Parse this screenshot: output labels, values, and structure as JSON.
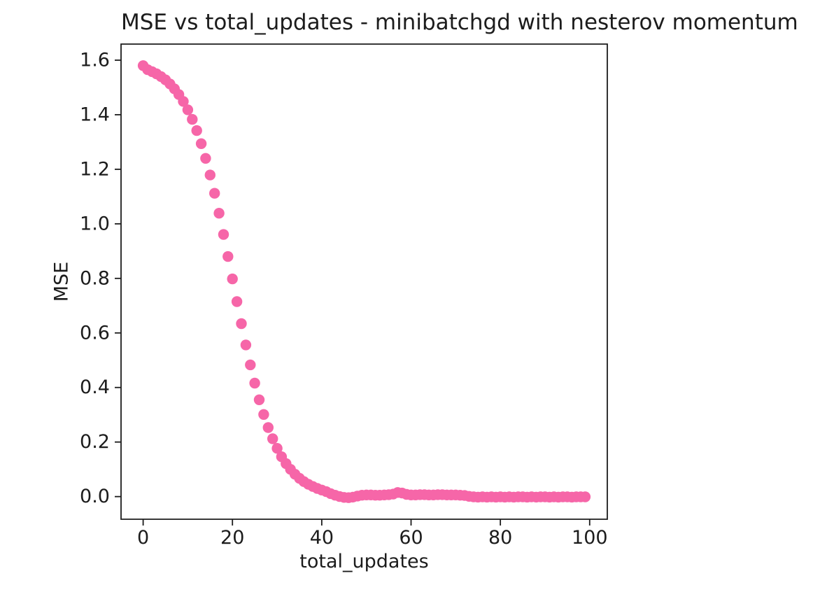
{
  "chart_data": {
    "type": "scatter",
    "title": "MSE vs total_updates - minibatchgd with nesterov momentum",
    "xlabel": "total_updates",
    "ylabel": "MSE",
    "marker_color": "#f666a8",
    "axis_color": "#1c1c1c",
    "background_color": "#ffffff",
    "grid": false,
    "legend": null,
    "xlim": [
      -4.95,
      103.95
    ],
    "ylim": [
      -0.083,
      1.659
    ],
    "x_ticks": [
      0,
      20,
      40,
      60,
      80,
      100
    ],
    "x_tick_labels": [
      "0",
      "20",
      "40",
      "60",
      "80",
      "100"
    ],
    "y_ticks": [
      0.0,
      0.2,
      0.4,
      0.6,
      0.8,
      1.0,
      1.2,
      1.4,
      1.6
    ],
    "y_tick_labels": [
      "0.0",
      "0.2",
      "0.4",
      "0.6",
      "0.8",
      "1.0",
      "1.2",
      "1.4",
      "1.6"
    ],
    "x": [
      0,
      1,
      2,
      3,
      4,
      5,
      6,
      7,
      8,
      9,
      10,
      11,
      12,
      13,
      14,
      15,
      16,
      17,
      18,
      19,
      20,
      21,
      22,
      23,
      24,
      25,
      26,
      27,
      28,
      29,
      30,
      31,
      32,
      33,
      34,
      35,
      36,
      37,
      38,
      39,
      40,
      41,
      42,
      43,
      44,
      45,
      46,
      47,
      48,
      49,
      50,
      51,
      52,
      53,
      54,
      55,
      56,
      57,
      58,
      59,
      60,
      61,
      62,
      63,
      64,
      65,
      66,
      67,
      68,
      69,
      70,
      71,
      72,
      73,
      74,
      75,
      76,
      77,
      78,
      79,
      80,
      81,
      82,
      83,
      84,
      85,
      86,
      87,
      88,
      89,
      90,
      91,
      92,
      93,
      94,
      95,
      96,
      97,
      98,
      99
    ],
    "y": [
      1.58,
      1.565,
      1.558,
      1.55,
      1.54,
      1.528,
      1.513,
      1.495,
      1.474,
      1.449,
      1.418,
      1.383,
      1.342,
      1.294,
      1.24,
      1.179,
      1.112,
      1.039,
      0.961,
      0.88,
      0.798,
      0.715,
      0.634,
      0.556,
      0.483,
      0.416,
      0.355,
      0.301,
      0.253,
      0.212,
      0.177,
      0.146,
      0.121,
      0.1,
      0.082,
      0.067,
      0.055,
      0.045,
      0.037,
      0.03,
      0.024,
      0.018,
      0.011,
      0.005,
      0.0,
      -0.003,
      -0.004,
      -0.002,
      0.002,
      0.005,
      0.006,
      0.006,
      0.005,
      0.005,
      0.006,
      0.007,
      0.009,
      0.015,
      0.013,
      0.008,
      0.006,
      0.006,
      0.007,
      0.007,
      0.006,
      0.006,
      0.007,
      0.007,
      0.006,
      0.006,
      0.006,
      0.005,
      0.004,
      0.001,
      -0.001,
      -0.002,
      -0.001,
      -0.002,
      -0.001,
      -0.002,
      -0.001,
      -0.002,
      -0.001,
      -0.002,
      -0.001,
      -0.001,
      -0.002,
      -0.001,
      -0.002,
      -0.001,
      -0.001,
      -0.002,
      -0.001,
      -0.002,
      -0.001,
      -0.001,
      -0.002,
      -0.001,
      -0.001,
      -0.001
    ]
  }
}
